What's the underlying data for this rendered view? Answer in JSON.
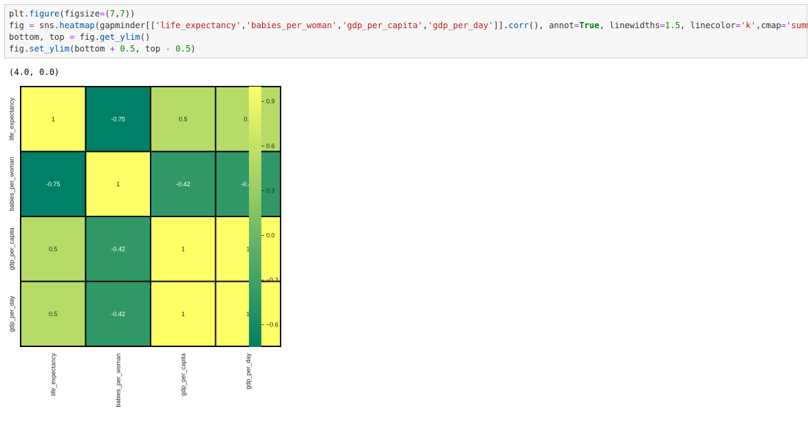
{
  "code_cell": {
    "lines": [
      [
        {
          "t": "plt.",
          "k": ""
        },
        {
          "t": "figure",
          "k": "fn"
        },
        {
          "t": "(figsize",
          "k": ""
        },
        {
          "t": "=",
          "k": "op"
        },
        {
          "t": "(",
          "k": ""
        },
        {
          "t": "7",
          "k": "num"
        },
        {
          "t": ",",
          "k": ""
        },
        {
          "t": "7",
          "k": "num"
        },
        {
          "t": "))",
          "k": ""
        }
      ],
      [
        {
          "t": "fig ",
          "k": ""
        },
        {
          "t": "=",
          "k": "op"
        },
        {
          "t": " sns.",
          "k": ""
        },
        {
          "t": "heatmap",
          "k": "fn"
        },
        {
          "t": "(gapminder[[",
          "k": ""
        },
        {
          "t": "'life_expectancy'",
          "k": "str"
        },
        {
          "t": ",",
          "k": ""
        },
        {
          "t": "'babies_per_woman'",
          "k": "str"
        },
        {
          "t": ",",
          "k": ""
        },
        {
          "t": "'gdp_per_capita'",
          "k": "str"
        },
        {
          "t": ",",
          "k": ""
        },
        {
          "t": "'gdp_per_day'",
          "k": "str"
        },
        {
          "t": "]].",
          "k": ""
        },
        {
          "t": "corr",
          "k": "fn"
        },
        {
          "t": "(), annot",
          "k": ""
        },
        {
          "t": "=",
          "k": "op"
        },
        {
          "t": "True",
          "k": "kw"
        },
        {
          "t": ", linewidths",
          "k": ""
        },
        {
          "t": "=",
          "k": "op"
        },
        {
          "t": "1.5",
          "k": "num"
        },
        {
          "t": ", linecolor",
          "k": ""
        },
        {
          "t": "=",
          "k": "op"
        },
        {
          "t": "'k'",
          "k": "str"
        },
        {
          "t": ",cmap",
          "k": ""
        },
        {
          "t": "=",
          "k": "op"
        },
        {
          "t": "'summer'",
          "k": "str"
        },
        {
          "t": ")",
          "k": ""
        }
      ],
      [
        {
          "t": "bottom, top ",
          "k": ""
        },
        {
          "t": "=",
          "k": "op"
        },
        {
          "t": " fig.",
          "k": ""
        },
        {
          "t": "get_ylim",
          "k": "fn"
        },
        {
          "t": "()",
          "k": ""
        }
      ],
      [
        {
          "t": "fig.",
          "k": ""
        },
        {
          "t": "set_ylim",
          "k": "fn"
        },
        {
          "t": "(bottom ",
          "k": ""
        },
        {
          "t": "+",
          "k": "op"
        },
        {
          "t": " ",
          "k": ""
        },
        {
          "t": "0.5",
          "k": "num"
        },
        {
          "t": ", top ",
          "k": ""
        },
        {
          "t": "-",
          "k": "op"
        },
        {
          "t": " ",
          "k": ""
        },
        {
          "t": "0.5",
          "k": "num"
        },
        {
          "t": ")",
          "k": ""
        }
      ]
    ]
  },
  "output": {
    "text": "(4.0, 0.0)"
  },
  "colors": {
    "cmap_low": "#008066",
    "cmap_high": "#ffff66",
    "grid_line": "#000000"
  },
  "chart_data": {
    "type": "heatmap",
    "row_labels": [
      "life_expectancy",
      "babies_per_woman",
      "gdp_per_capita",
      "gdp_per_day"
    ],
    "col_labels": [
      "life_expectancy",
      "babies_per_woman",
      "gdp_per_capita",
      "gdp_per_day"
    ],
    "values": [
      [
        1,
        -0.75,
        0.5,
        0.5
      ],
      [
        -0.75,
        1,
        -0.42,
        -0.42
      ],
      [
        0.5,
        -0.42,
        1,
        1
      ],
      [
        0.5,
        -0.42,
        1,
        1
      ]
    ],
    "annotations": [
      [
        "1",
        "-0.75",
        "0.5",
        "0.5"
      ],
      [
        "-0.75",
        "1",
        "-0.42",
        "-0.42"
      ],
      [
        "0.5",
        "-0.42",
        "1",
        "1"
      ],
      [
        "0.5",
        "-0.42",
        "1",
        "1"
      ]
    ],
    "colormap": "summer",
    "vmin": -0.75,
    "vmax": 1,
    "colorbar_ticks": [
      0.9,
      0.6,
      0.3,
      0.0,
      -0.3,
      -0.6
    ],
    "colorbar_tick_labels": [
      "0.9",
      "0.6",
      "0.3",
      "0.0",
      "−0.3",
      "−0.6"
    ]
  }
}
